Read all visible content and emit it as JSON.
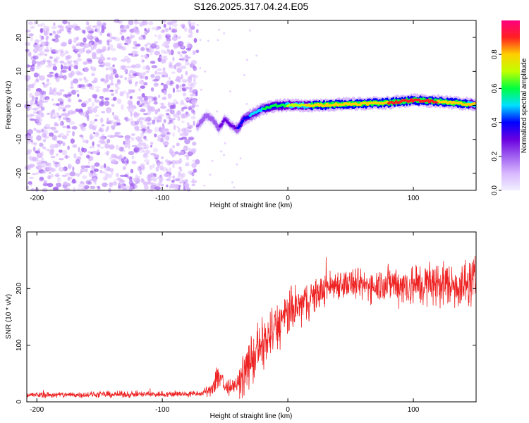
{
  "title": "S126.2025.317.04.24.E05",
  "chart_data": [
    {
      "type": "heatmap",
      "name": "spectrogram",
      "xlabel": "Height of straight line (km)",
      "ylabel": "Frequency (Hz)",
      "xlim": [
        -208,
        150
      ],
      "ylim": [
        -25,
        25
      ],
      "xticks": [
        -200,
        -100,
        0,
        100
      ],
      "xtick_labels": [
        "-200",
        "-100",
        "0",
        "100"
      ],
      "yticks": [
        -20,
        -10,
        0,
        10,
        20
      ],
      "ytick_labels": [
        "-20",
        "-10",
        "0",
        "10",
        "20"
      ],
      "colorbar": {
        "label": "Normalized spectral amplitude",
        "range": [
          0,
          1
        ],
        "ticks": [
          0.0,
          0.2,
          0.4,
          0.6,
          0.8
        ],
        "tick_labels": [
          "0.0",
          "0.2",
          "0.4",
          "0.6",
          "0.8"
        ],
        "colors": [
          "#f0f0ff",
          "#d9b8ff",
          "#a060f0",
          "#6a00e0",
          "#0000ff",
          "#00e0ff",
          "#00ff40",
          "#c0ff00",
          "#ffd000",
          "#ff2020",
          "#ff0080"
        ]
      },
      "noise_region": {
        "x_range": [
          -208,
          -72
        ],
        "y_range": [
          -25,
          25
        ],
        "level_range": [
          0.02,
          0.2
        ]
      },
      "signal_trace": {
        "x": [
          -72,
          -65,
          -60,
          -55,
          -50,
          -45,
          -40,
          -35,
          -30,
          -25,
          -20,
          -10,
          0,
          20,
          40,
          60,
          80,
          100,
          120,
          140,
          150
        ],
        "y": [
          -6,
          -3,
          -4,
          -7,
          -4,
          -6,
          -7,
          -4,
          -3,
          -2,
          -1,
          0,
          0,
          0,
          0.3,
          0.5,
          0.8,
          1.5,
          1.2,
          0.5,
          0.3
        ],
        "amplitude": [
          0.2,
          0.25,
          0.22,
          0.25,
          0.3,
          0.3,
          0.35,
          0.4,
          0.45,
          0.5,
          0.55,
          0.6,
          0.65,
          0.8,
          0.8,
          0.82,
          0.85,
          0.9,
          0.85,
          0.8,
          0.75
        ]
      }
    },
    {
      "type": "line",
      "name": "snr",
      "xlabel": "Height of straight line (km)",
      "ylabel": "SNR (10 * v/v)",
      "xlim": [
        -208,
        150
      ],
      "ylim": [
        0,
        300
      ],
      "xticks": [
        -200,
        -100,
        0,
        100
      ],
      "xtick_labels": [
        "-200",
        "-100",
        "0",
        "100"
      ],
      "yticks": [
        0,
        100,
        200,
        300
      ],
      "ytick_labels": [
        "0",
        "100",
        "200",
        "300"
      ],
      "color": "#ee2222",
      "envelope": {
        "x": [
          -208,
          -70,
          -62,
          -55,
          -50,
          -45,
          -40,
          -35,
          -30,
          -20,
          -10,
          0,
          10,
          20,
          30,
          40,
          60,
          80,
          100,
          120,
          140,
          150
        ],
        "mean": [
          12,
          14,
          20,
          50,
          25,
          25,
          30,
          50,
          70,
          100,
          130,
          155,
          170,
          185,
          200,
          210,
          205,
          210,
          205,
          210,
          205,
          215
        ],
        "spread": [
          6,
          6,
          10,
          40,
          15,
          15,
          20,
          40,
          50,
          50,
          50,
          45,
          40,
          35,
          30,
          30,
          30,
          35,
          45,
          45,
          45,
          45
        ]
      }
    }
  ]
}
